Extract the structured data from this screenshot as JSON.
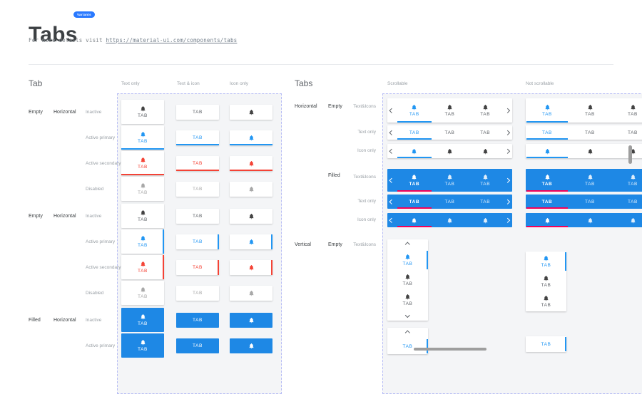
{
  "header": {
    "title": "Tabs",
    "badge": "Variants",
    "subtitle_prefix": "For more details visit",
    "link": "https://material-ui.com/components/tabs"
  },
  "tab_label": "TAB",
  "icons": {
    "tab_icon": "notifications-bell",
    "scroll_left": "chevron-left",
    "scroll_right": "chevron-right",
    "scroll_up": "chevron-up",
    "scroll_down": "chevron-down"
  },
  "left": {
    "title": "Tab",
    "columns": [
      "Text only",
      "Text & icon",
      "Icon only"
    ],
    "groups": [
      {
        "variant": "Empty",
        "orientation": "Horizontal",
        "indicator": "bottom",
        "filled": false,
        "rows": [
          {
            "state": "Inactive",
            "style": "inactive"
          },
          {
            "state": "Active primary",
            "style": "primary"
          },
          {
            "state": "Active secondary",
            "style": "secondary"
          },
          {
            "state": "Disabled",
            "style": "disabled"
          }
        ]
      },
      {
        "variant": "Empty",
        "orientation": "Horizontal",
        "indicator": "right",
        "filled": false,
        "rows": [
          {
            "state": "Inactive",
            "style": "inactive"
          },
          {
            "state": "Active primary",
            "style": "primary"
          },
          {
            "state": "Active secondary",
            "style": "secondary"
          },
          {
            "state": "Disabled",
            "style": "disabled"
          }
        ]
      },
      {
        "variant": "Filled",
        "orientation": "Horizontal",
        "indicator": "bottom",
        "filled": true,
        "rows": [
          {
            "state": "Inactive",
            "style": "inactive"
          },
          {
            "state": "Active primary",
            "style": "primary"
          }
        ]
      }
    ]
  },
  "right": {
    "title": "Tabs",
    "columns": [
      "Scrollable",
      "Not scrollable"
    ],
    "groups": [
      {
        "orientation": "Horizontal",
        "variant": "Empty",
        "filled": false,
        "rows": [
          {
            "label": "Text&Icons",
            "mode": "texticon"
          },
          {
            "label": "Text only",
            "mode": "text"
          },
          {
            "label": "Icon only",
            "mode": "icon"
          }
        ]
      },
      {
        "orientation": "",
        "variant": "Filled",
        "filled": true,
        "rows": [
          {
            "label": "Text&Icons",
            "mode": "texticon"
          },
          {
            "label": "Text only",
            "mode": "text"
          },
          {
            "label": "Icon only",
            "mode": "icon"
          }
        ]
      }
    ],
    "vertical_groups": [
      {
        "orientation": "Vertical",
        "variant": "Empty",
        "label": "Text&Icons",
        "mode": "texticon"
      },
      {
        "orientation": "",
        "variant": "",
        "label": "",
        "mode": "text"
      }
    ]
  },
  "colors": {
    "primary": "#2196F3",
    "secondary": "#F44336",
    "filled_bg": "#1E88E5",
    "filled_indicator": "#F50057",
    "badge_bg": "#2979FF",
    "dashed_border": "#B6BCF5",
    "canvas_bg": "#F4F5F7",
    "inactive_icon": "#424242",
    "inactive_text": "#5F6368",
    "disabled": "#A8A8A8",
    "label_muted": "#9AA0A6",
    "label_dark": "#3C4043",
    "scrollbar": "#9E9E9E",
    "divider": "#E8EAED",
    "title": "#3C4043"
  }
}
